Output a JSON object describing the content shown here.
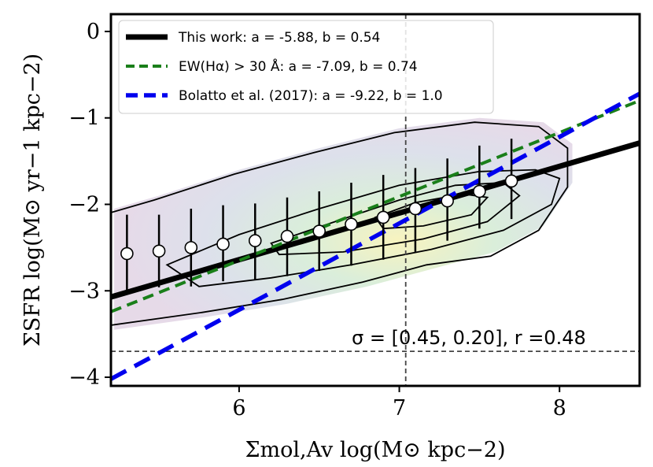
{
  "chart_data": {
    "type": "scatter",
    "title": "",
    "xlabel": "Σmol,Av log(M⊙ kpc−2)",
    "ylabel": "ΣSFR log(M⊙ yr−1 kpc−2)",
    "xlim": [
      5.2,
      8.5
    ],
    "ylim": [
      -4.1,
      0.2
    ],
    "x_ticks": [
      6,
      7,
      8
    ],
    "y_ticks": [
      0,
      -1,
      -2,
      -3,
      -4
    ],
    "x_tick_labels": [
      "6",
      "7",
      "8"
    ],
    "y_tick_labels": [
      "0",
      "−1",
      "−2",
      "−3",
      "−4"
    ],
    "grid": false,
    "legend_position": "top-left",
    "series": [
      {
        "name": "This work: a = -5.88, b = 0.54",
        "kind": "line",
        "color": "#000000",
        "style": "solid",
        "a": -5.88,
        "b": 0.54
      },
      {
        "name": "EW(Hα) > 30 Å: a = -7.09, b = 0.74",
        "kind": "line",
        "color": "#1a7f1a",
        "style": "dashed",
        "a": -7.09,
        "b": 0.74
      },
      {
        "name": "Bolatto et al. (2017): a = -9.22, b = 1.0",
        "kind": "line",
        "color": "#0000ee",
        "style": "dashed",
        "a": -9.22,
        "b": 1.0
      },
      {
        "name": "binned medians",
        "kind": "errorbar",
        "color": "#000000",
        "x": [
          5.3,
          5.5,
          5.7,
          5.9,
          6.1,
          6.3,
          6.5,
          6.7,
          6.9,
          7.1,
          7.3,
          7.5,
          7.7
        ],
        "y": [
          -2.57,
          -2.54,
          -2.5,
          -2.46,
          -2.42,
          -2.37,
          -2.31,
          -2.23,
          -2.15,
          -2.05,
          -1.96,
          -1.85,
          -1.73
        ],
        "yerr_low": [
          0.45,
          0.42,
          0.45,
          0.43,
          0.45,
          0.46,
          0.46,
          0.48,
          0.49,
          0.5,
          0.46,
          0.43,
          0.44
        ],
        "yerr_high": [
          0.45,
          0.42,
          0.45,
          0.45,
          0.43,
          0.45,
          0.46,
          0.48,
          0.49,
          0.47,
          0.49,
          0.53,
          0.49
        ]
      }
    ],
    "reference_lines": {
      "vertical_x": 7.04,
      "horizontal_y": -3.7
    },
    "density_levels": [
      [
        [
          5.22,
          -2.05
        ],
        [
          5.5,
          -1.9
        ],
        [
          6.0,
          -1.6
        ],
        [
          6.5,
          -1.35
        ],
        [
          7.0,
          -1.12
        ],
        [
          7.5,
          -1.0
        ],
        [
          7.9,
          -1.05
        ],
        [
          8.08,
          -1.3
        ],
        [
          8.08,
          -1.75
        ],
        [
          7.9,
          -2.25
        ],
        [
          7.6,
          -2.55
        ],
        [
          7.2,
          -2.75
        ],
        [
          6.8,
          -2.95
        ],
        [
          6.3,
          -3.15
        ],
        [
          5.8,
          -3.3
        ],
        [
          5.22,
          -3.45
        ]
      ],
      [
        [
          5.55,
          -2.7
        ],
        [
          6.0,
          -2.35
        ],
        [
          6.5,
          -2.05
        ],
        [
          7.0,
          -1.78
        ],
        [
          7.5,
          -1.62
        ],
        [
          7.85,
          -1.6
        ],
        [
          8.0,
          -1.7
        ],
        [
          7.95,
          -2.0
        ],
        [
          7.65,
          -2.3
        ],
        [
          7.2,
          -2.52
        ],
        [
          6.7,
          -2.7
        ],
        [
          6.2,
          -2.85
        ],
        [
          5.75,
          -2.95
        ]
      ],
      [
        [
          6.2,
          -2.45
        ],
        [
          6.6,
          -2.2
        ],
        [
          7.0,
          -1.95
        ],
        [
          7.35,
          -1.78
        ],
        [
          7.65,
          -1.75
        ],
        [
          7.75,
          -1.9
        ],
        [
          7.55,
          -2.2
        ],
        [
          7.15,
          -2.4
        ],
        [
          6.65,
          -2.55
        ],
        [
          6.25,
          -2.58
        ]
      ],
      [
        [
          6.85,
          -2.15
        ],
        [
          7.1,
          -1.98
        ],
        [
          7.4,
          -1.88
        ],
        [
          7.55,
          -1.92
        ],
        [
          7.45,
          -2.12
        ],
        [
          7.15,
          -2.25
        ],
        [
          6.9,
          -2.28
        ]
      ]
    ],
    "annotation": "σ = [0.45, 0.20], r =0.48"
  }
}
